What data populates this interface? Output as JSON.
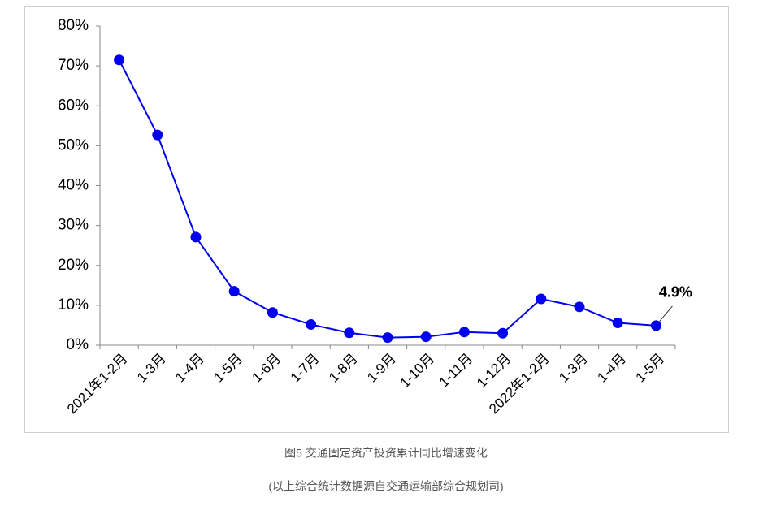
{
  "chart_data": {
    "type": "line",
    "categories": [
      "2021年1-2月",
      "1-3月",
      "1-4月",
      "1-5月",
      "1-6月",
      "1-7月",
      "1-8月",
      "1-9月",
      "1-10月",
      "1-11月",
      "1-12月",
      "2022年1-2月",
      "1-3月",
      "1-4月",
      "1-5月"
    ],
    "series": [
      {
        "color": "#0000ee",
        "values": [
          71.5,
          52.7,
          27.1,
          13.5,
          8.2,
          5.2,
          3.1,
          1.9,
          2.1,
          3.3,
          3.0,
          11.6,
          9.6,
          5.6,
          4.9
        ]
      }
    ],
    "ylim": [
      0,
      80
    ],
    "yticks": [
      {
        "value": 0,
        "label": "0%"
      },
      {
        "value": 10,
        "label": "10%"
      },
      {
        "value": 20,
        "label": "20%"
      },
      {
        "value": 30,
        "label": "30%"
      },
      {
        "value": 40,
        "label": "40%"
      },
      {
        "value": 50,
        "label": "50%"
      },
      {
        "value": 60,
        "label": "60%"
      },
      {
        "value": 70,
        "label": "70%"
      },
      {
        "value": 80,
        "label": "80%"
      }
    ],
    "annotation": "4.9%",
    "caption": "图5   交通固定资产投资累计同比增速变化",
    "source": "(以上综合统计数据源自交通运输部综合规划司)"
  }
}
